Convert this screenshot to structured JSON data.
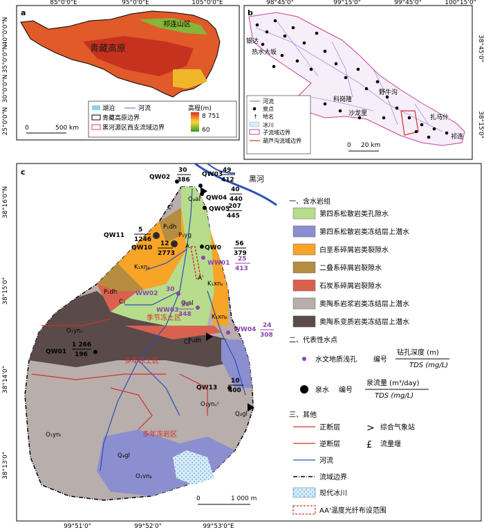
{
  "panel_a": {
    "letter": "a",
    "top_coords": [
      "85°0'0\"E",
      "95°0'0\"E",
      "105°0'0\"E"
    ],
    "left_coords": [
      "40°0'0\"N",
      "35°0'0\"N",
      "30°0'0\"N",
      "25°0'0\"N"
    ],
    "plateau_label": "青藏高原",
    "basin_label": "祁连山区",
    "scale_label": "500 km",
    "scale_zero": "0",
    "legend": {
      "lake": "湖泊",
      "river": "河流",
      "plateau_boundary": "青藏高原边界",
      "heihe_boundary": "黑河源区西支流域边界",
      "elevation_title": "高程(m)",
      "elev_max": "8 751",
      "elev_min": "60"
    }
  },
  "panel_b": {
    "letter": "b",
    "top_coords": [
      "98°45'0\"",
      "99°15'0\"",
      "99°45'0\"",
      "100°15'0\""
    ],
    "right_coords": [
      "38°45'0\"",
      "38°15'0\""
    ],
    "places": [
      "银达",
      "热水大坂",
      "野牛沟",
      "扎马什",
      "科岗隆",
      "沙龙里",
      "祁连"
    ],
    "legend": {
      "river": "河流",
      "spring": "泉点",
      "place": "地名",
      "glacier": "冰川",
      "sub_basin": "子流域边界",
      "hulugou": "葫芦沟流域边界"
    },
    "scale_label": "20 km",
    "scale_zero": "0"
  },
  "panel_c": {
    "letter": "c",
    "left_coords": [
      "38°16'0\"N",
      "38°15'0\"",
      "38°14'0\"",
      "38°13'0\""
    ],
    "bottom_coords": [
      "99°51'0\"",
      "99°52'0\"",
      "99°53'0\"E"
    ],
    "river_name": "黑河",
    "wells": [
      {
        "id": "QW02",
        "top": "30",
        "bottom": "386"
      },
      {
        "id": "QW03",
        "top": "49",
        "bottom": "412"
      },
      {
        "id": "QW04",
        "top": "40",
        "bottom": "440"
      },
      {
        "id": "QW05",
        "top": "207",
        "bottom": "445"
      },
      {
        "id": "QW11",
        "top": "5",
        "bottom": "1246"
      },
      {
        "id": "QW10",
        "top": "12",
        "bottom": "2773"
      },
      {
        "id": "QW0",
        "top": "56",
        "bottom": "379"
      },
      {
        "id": "QW01",
        "top": "1 266",
        "bottom": "196"
      },
      {
        "id": "QW13",
        "top": "10",
        "bottom": "400"
      }
    ],
    "holes": [
      {
        "id": "WW01",
        "top": "25",
        "bottom": "413"
      },
      {
        "id": "WW02",
        "top": "30",
        "bottom": ""
      },
      {
        "id": "WW03",
        "top": "30",
        "bottom": "348"
      },
      {
        "id": "WW04",
        "top": "24",
        "bottom": "308"
      }
    ],
    "region_labels": {
      "seasonal": "季节冻土区",
      "permafrost1": "多年冻土区",
      "permafrost2": "多年冻岩区",
      "A": "A",
      "A2": "A'"
    },
    "geo_labels": [
      "Q₄al",
      "Q₄gl",
      "K₁xnₐ",
      "K₁xnᵦ",
      "P₁dh",
      "C₂",
      "O₁ynᵤ",
      "O₁ynₗ",
      "O₁ynᵤᶜ",
      "O₁vnᵦ",
      "Cᶠ",
      "P₁yg"
    ],
    "scale_label": "1 000 m",
    "scale_zero": "0"
  },
  "legend_c": {
    "section1": "一、含水岩组",
    "items1": [
      {
        "label": "第四系松散岩类孔隙水",
        "color": "#b6dc8c"
      },
      {
        "label": "第四系松散岩类冻结层上潜水",
        "color": "#8c8fcf"
      },
      {
        "label": "白垩系碎屑岩类裂隙水",
        "color": "#f7a427"
      },
      {
        "label": "二叠系碎屑岩裂隙水",
        "color": "#b58c40"
      },
      {
        "label": "石炭系碎屑岩裂隙水",
        "color": "#d9614f"
      },
      {
        "label": "奥陶系岩浆岩类冻结层上潜水",
        "color": "#b8aeac"
      },
      {
        "label": "奥陶系变质岩类冻结层上潜水",
        "color": "#5a4a4a"
      }
    ],
    "section2": "二、代表性水点",
    "hole_label": "水文地质浅孔",
    "hole_bianhao": "编号",
    "hole_depth": "钻孔深度 (m)",
    "hole_tds": "TDS (mg/L)",
    "spring_label": "泉水",
    "spring_bianhao": "编号",
    "spring_flow": "泉流量 (m³/day)",
    "spring_tds": "TDS (mg/L)",
    "section3": "三、其他",
    "normal_fault": "正断层",
    "reverse_fault": "逆断层",
    "weather_station": "综合气象站",
    "weir": "流量堰",
    "river": "河流",
    "basin_boundary": "流域边界",
    "modern_glacier": "现代冰川",
    "fiber_range": "AA'温度光纤布设范围"
  }
}
